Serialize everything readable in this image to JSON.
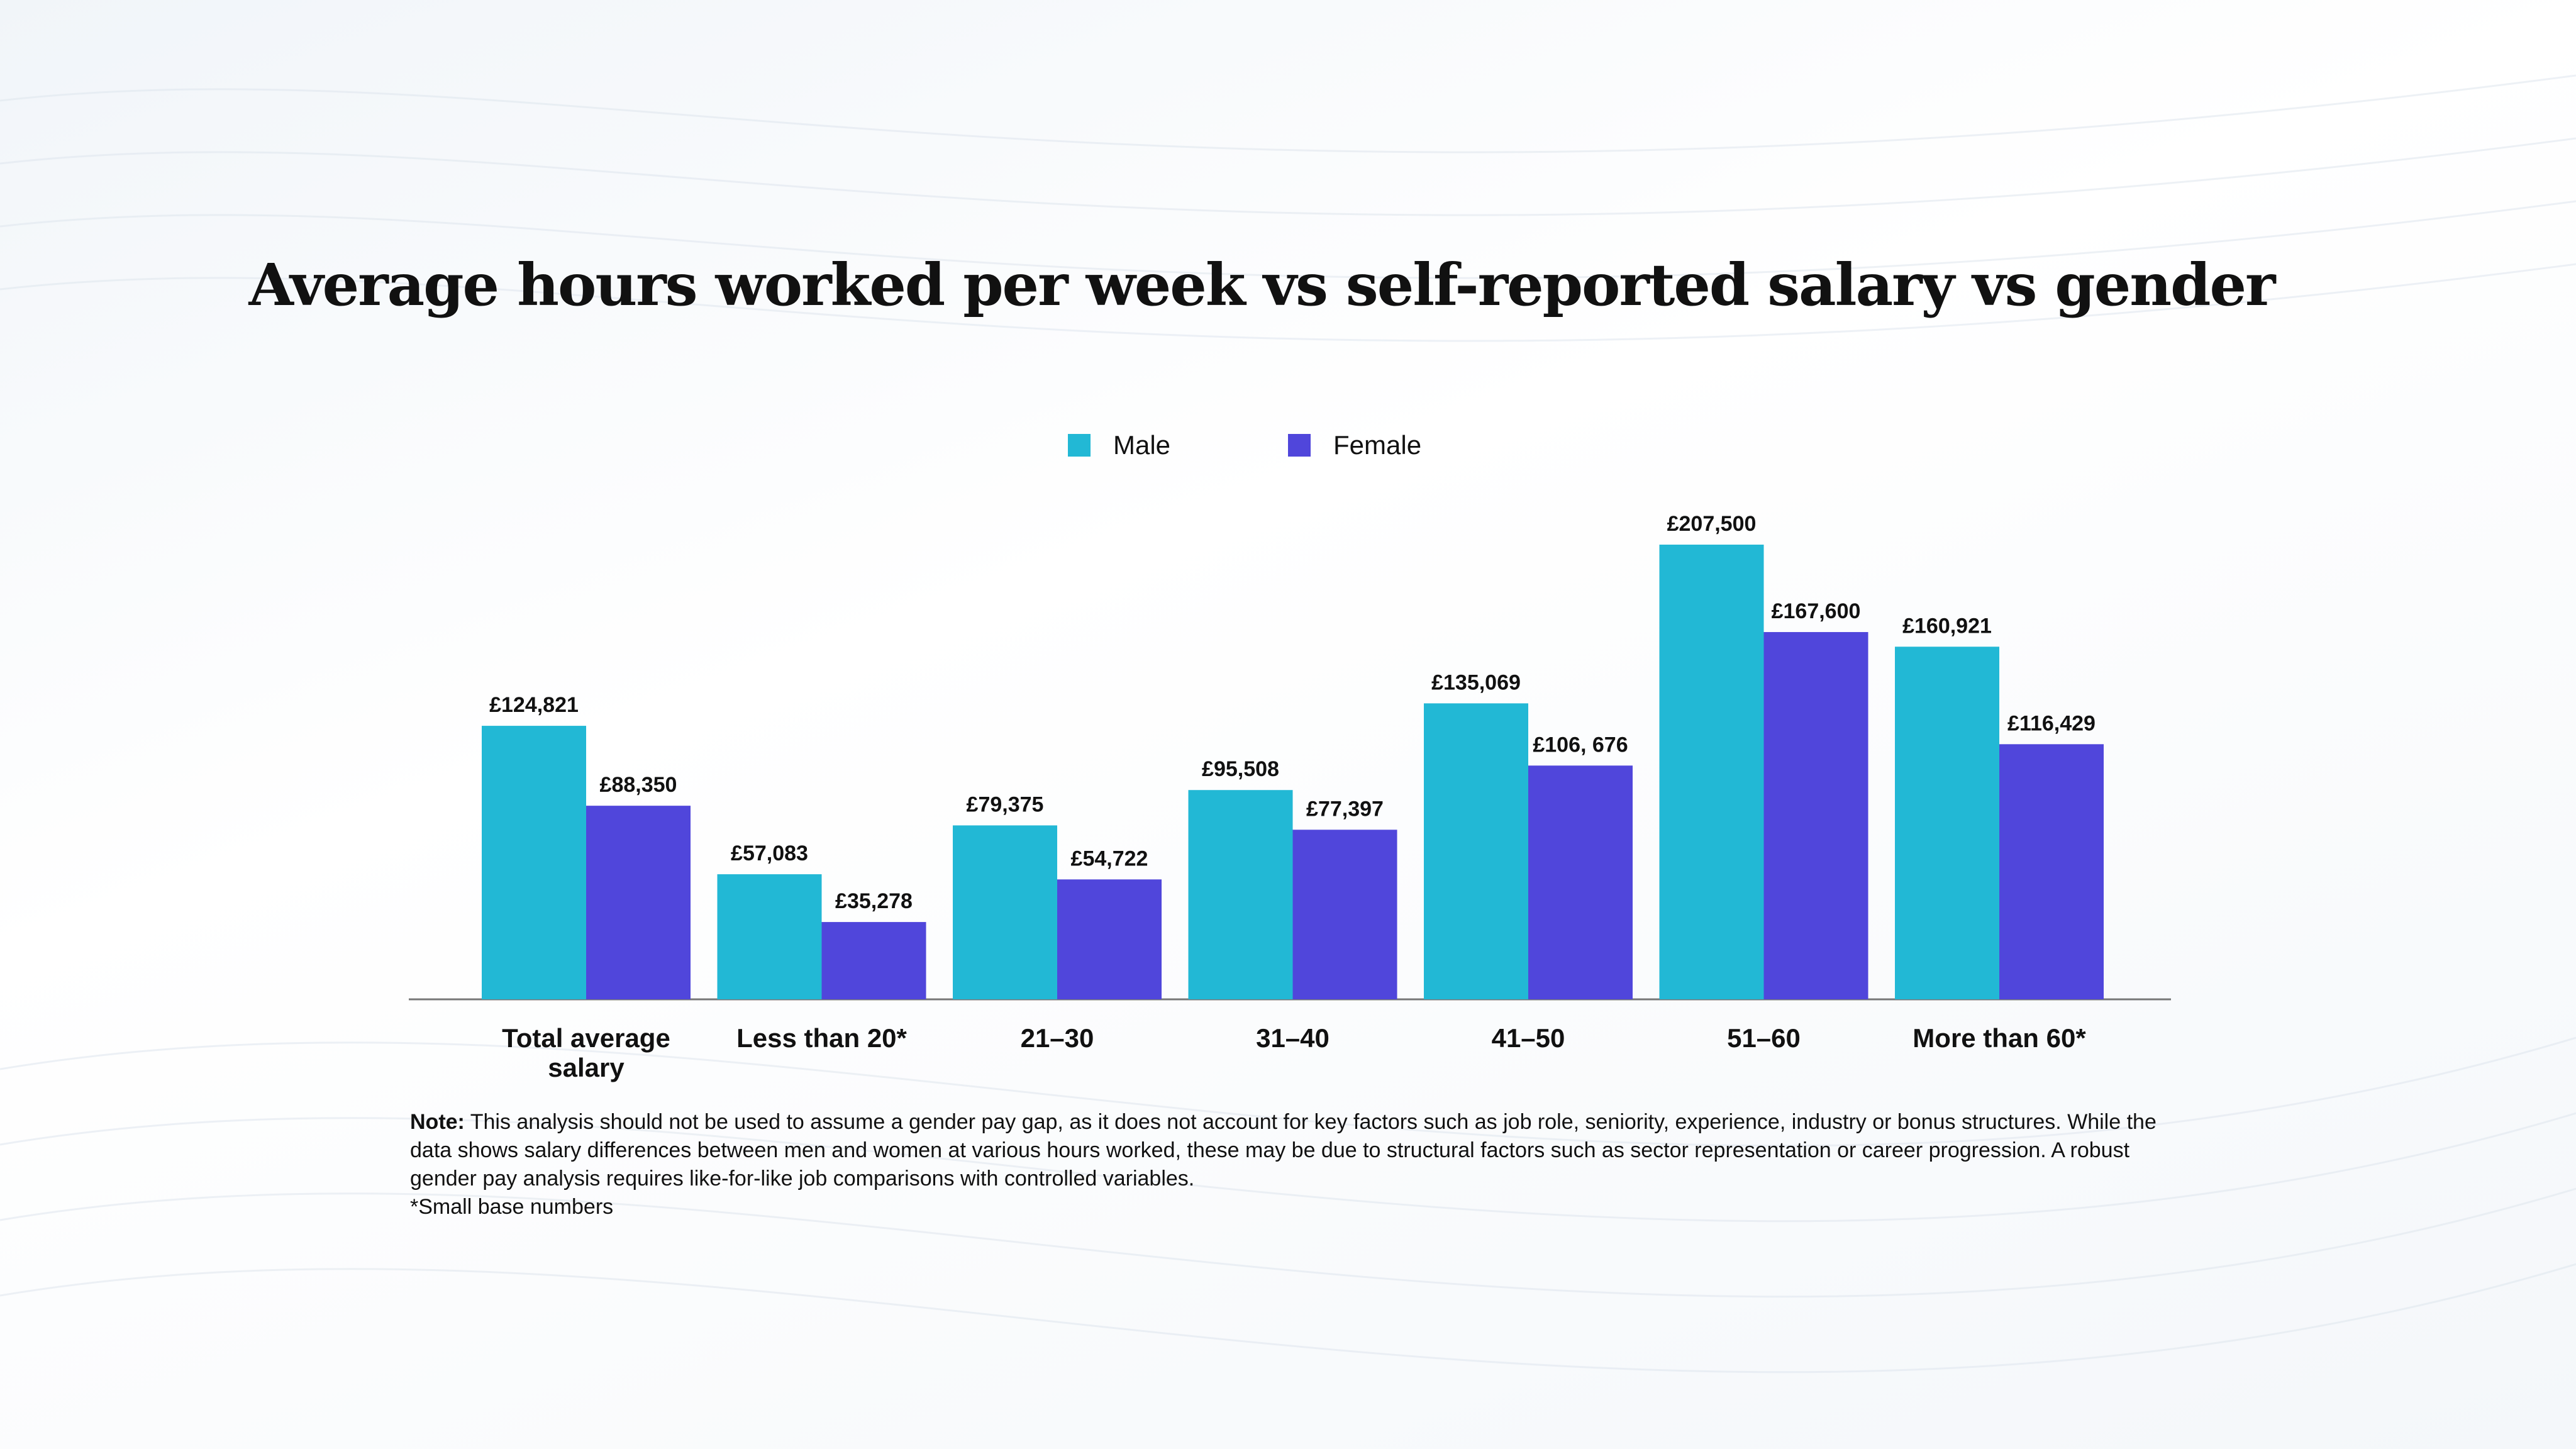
{
  "colors": {
    "male": "#22b8d5",
    "female": "#5046db",
    "axis": "#777777"
  },
  "chart_data": {
    "type": "bar",
    "title": "Average hours worked per week vs self-reported salary vs gender",
    "xlabel": "",
    "ylabel": "",
    "categories": [
      [
        "Total average",
        "salary"
      ],
      [
        "Less than 20*"
      ],
      [
        "21–30"
      ],
      [
        "31–40"
      ],
      [
        "41–50"
      ],
      [
        "51–60"
      ],
      [
        "More than 60*"
      ]
    ],
    "series": [
      {
        "name": "Male",
        "values": [
          124821,
          57083,
          79375,
          95508,
          135069,
          207500,
          160921
        ],
        "labels": [
          "£124,821",
          "£57,083",
          "£79,375",
          "£95,508",
          "£135,069",
          "£207,500",
          "£160,921"
        ]
      },
      {
        "name": "Female",
        "values": [
          88350,
          35278,
          54722,
          77397,
          106676,
          167600,
          116429
        ],
        "labels": [
          "£88,350",
          "£35,278",
          "£54,722",
          "£77,397",
          "£106, 676",
          "£167,600",
          "£116,429"
        ]
      }
    ],
    "ylim": [
      0,
      207500
    ],
    "grid": false,
    "legend": "top-center"
  },
  "note": {
    "label": "Note:",
    "text": " This analysis should not be used to assume a gender pay gap, as it does not account for key factors such as job role, seniority, experience, industry or bonus structures. While the data shows salary differences between men and women at various hours worked, these may be due to structural factors such as sector representation or career progression. A robust gender pay analysis requires like-for-like job comparisons with controlled variables.",
    "footnote": "*Small base numbers"
  }
}
